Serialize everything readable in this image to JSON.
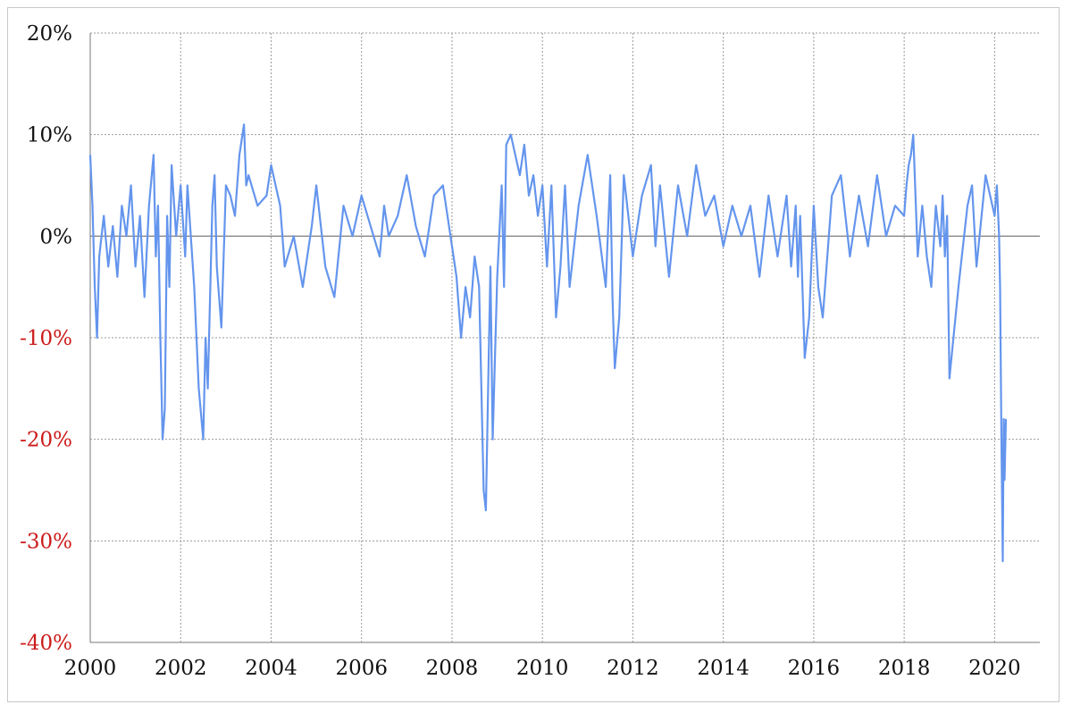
{
  "chart_data": {
    "type": "line",
    "title": "",
    "xlabel": "",
    "ylabel": "",
    "xlim": [
      2000,
      2021
    ],
    "ylim": [
      -40,
      20
    ],
    "grid": true,
    "legend": "none",
    "x_tick_labels": [
      "2000",
      "2002",
      "2004",
      "2006",
      "2008",
      "2010",
      "2012",
      "2014",
      "2016",
      "2018",
      "2020"
    ],
    "y_tick_labels": [
      "20%",
      "10%",
      "0%",
      "-10%",
      "-20%",
      "-30%",
      "-40%"
    ],
    "colors": {
      "series": "#6495ed",
      "negative_tick": "#cc1a1a",
      "positive_tick": "#111111",
      "zero_line": "#888888"
    },
    "series": [
      {
        "x": [
          2000.0,
          2000.05,
          2000.1,
          2000.15,
          2000.2,
          2000.3,
          2000.4,
          2000.5,
          2000.6,
          2000.7,
          2000.8,
          2000.9,
          2001.0,
          2001.1,
          2001.2,
          2001.3,
          2001.4,
          2001.45,
          2001.5,
          2001.55,
          2001.6,
          2001.65,
          2001.7,
          2001.75,
          2001.8,
          2001.9,
          2002.0,
          2002.1,
          2002.15,
          2002.3,
          2002.4,
          2002.5,
          2002.55,
          2002.6,
          2002.7,
          2002.75,
          2002.8,
          2002.9,
          2003.0,
          2003.1,
          2003.2,
          2003.3,
          2003.4,
          2003.45,
          2003.5,
          2003.7,
          2003.9,
          2004.0,
          2004.1,
          2004.2,
          2004.3,
          2004.5,
          2004.7,
          2004.9,
          2005.0,
          2005.2,
          2005.4,
          2005.6,
          2005.8,
          2006.0,
          2006.2,
          2006.4,
          2006.5,
          2006.6,
          2006.8,
          2007.0,
          2007.2,
          2007.4,
          2007.6,
          2007.8,
          2008.0,
          2008.1,
          2008.2,
          2008.3,
          2008.4,
          2008.5,
          2008.6,
          2008.7,
          2008.75,
          2008.8,
          2008.85,
          2008.9,
          2009.0,
          2009.1,
          2009.15,
          2009.2,
          2009.3,
          2009.4,
          2009.5,
          2009.6,
          2009.7,
          2009.8,
          2009.9,
          2010.0,
          2010.1,
          2010.2,
          2010.3,
          2010.4,
          2010.5,
          2010.6,
          2010.8,
          2011.0,
          2011.2,
          2011.4,
          2011.5,
          2011.55,
          2011.6,
          2011.7,
          2011.8,
          2012.0,
          2012.2,
          2012.4,
          2012.5,
          2012.6,
          2012.8,
          2013.0,
          2013.2,
          2013.4,
          2013.6,
          2013.8,
          2014.0,
          2014.2,
          2014.4,
          2014.6,
          2014.8,
          2015.0,
          2015.2,
          2015.4,
          2015.5,
          2015.6,
          2015.65,
          2015.7,
          2015.8,
          2015.9,
          2016.0,
          2016.1,
          2016.2,
          2016.4,
          2016.6,
          2016.8,
          2017.0,
          2017.2,
          2017.4,
          2017.6,
          2017.8,
          2018.0,
          2018.05,
          2018.1,
          2018.15,
          2018.2,
          2018.3,
          2018.4,
          2018.5,
          2018.6,
          2018.7,
          2018.8,
          2018.85,
          2018.9,
          2018.95,
          2019.0,
          2019.2,
          2019.4,
          2019.5,
          2019.6,
          2019.8,
          2020.0,
          2020.05,
          2020.1,
          2020.12,
          2020.15,
          2020.18,
          2020.2,
          2020.22,
          2020.25
        ],
        "y": [
          8,
          3,
          -5,
          -10,
          -2,
          2,
          -3,
          1,
          -4,
          3,
          0,
          5,
          -3,
          2,
          -6,
          3,
          8,
          -2,
          3,
          -10,
          -20,
          -17,
          2,
          -5,
          7,
          0,
          5,
          -2,
          5,
          -5,
          -15,
          -20,
          -10,
          -15,
          3,
          6,
          -3,
          -9,
          5,
          4,
          2,
          8,
          11,
          5,
          6,
          3,
          4,
          7,
          5,
          3,
          -3,
          0,
          -5,
          1,
          5,
          -3,
          -6,
          3,
          0,
          4,
          1,
          -2,
          3,
          0,
          2,
          6,
          1,
          -2,
          4,
          5,
          -1,
          -4,
          -10,
          -5,
          -8,
          -2,
          -5,
          -25,
          -27,
          -15,
          -3,
          -20,
          -4,
          5,
          -5,
          9,
          10,
          8,
          6,
          9,
          4,
          6,
          2,
          5,
          -3,
          5,
          -8,
          -3,
          5,
          -5,
          3,
          8,
          2,
          -5,
          6,
          -6,
          -13,
          -8,
          6,
          -2,
          4,
          7,
          -1,
          5,
          -4,
          5,
          0,
          7,
          2,
          4,
          -1,
          3,
          0,
          3,
          -4,
          4,
          -2,
          4,
          -3,
          3,
          -4,
          2,
          -12,
          -8,
          3,
          -5,
          -8,
          4,
          6,
          -2,
          4,
          -1,
          6,
          0,
          3,
          2,
          5,
          7,
          8,
          10,
          -2,
          3,
          -2,
          -5,
          3,
          -1,
          4,
          -2,
          2,
          -14,
          -5,
          3,
          5,
          -3,
          6,
          2,
          5,
          0,
          -5,
          -20,
          -32,
          -18,
          -24,
          -18
        ]
      }
    ]
  }
}
